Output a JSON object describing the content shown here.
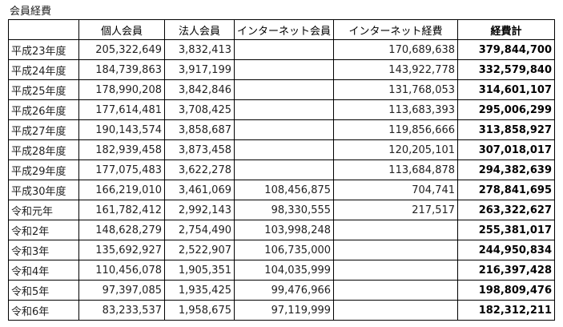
{
  "title": "会員経費",
  "headers": [
    "",
    "個人会員",
    "法人会員",
    "インターネット会員",
    "インターネット経費",
    "経費計"
  ],
  "rows": [
    [
      "平成23年度",
      "205,322,649",
      "3,832,413",
      "",
      "170,689,638",
      "379,844,700"
    ],
    [
      "平成24年度",
      "184,739,863",
      "3,917,199",
      "",
      "143,922,778",
      "332,579,840"
    ],
    [
      "平成25年度",
      "178,990,208",
      "3,842,846",
      "",
      "131,768,053",
      "314,601,107"
    ],
    [
      "平成26年度",
      "177,614,481",
      "3,708,425",
      "",
      "113,683,393",
      "295,006,299"
    ],
    [
      "平成27年度",
      "190,143,574",
      "3,858,687",
      "",
      "119,856,666",
      "313,858,927"
    ],
    [
      "平成28年度",
      "182,939,458",
      "3,873,458",
      "",
      "120,205,101",
      "307,018,017"
    ],
    [
      "平成29年度",
      "177,075,483",
      "3,622,278",
      "",
      "113,684,878",
      "294,382,639"
    ],
    [
      "平成30年度",
      "166,219,010",
      "3,461,069",
      "108,456,875",
      "704,741",
      "278,841,695"
    ],
    [
      "令和元年",
      "161,782,412",
      "2,992,143",
      "98,330,555",
      "217,517",
      "263,322,627"
    ],
    [
      "令和2年",
      "148,628,279",
      "2,754,490",
      "103,998,248",
      "",
      "255,381,017"
    ],
    [
      "令和3年",
      "135,692,927",
      "2,522,907",
      "106,735,000",
      "",
      "244,950,834"
    ],
    [
      "令和4年",
      "110,456,078",
      "1,905,351",
      "104,035,999",
      "",
      "216,397,428"
    ],
    [
      "令和5年",
      "97,397,085",
      "1,935,425",
      "99,476,966",
      "",
      "198,809,476"
    ],
    [
      "令和6年",
      "83,233,537",
      "1,958,675",
      "97,119,999",
      "",
      "182,312,211"
    ]
  ]
}
